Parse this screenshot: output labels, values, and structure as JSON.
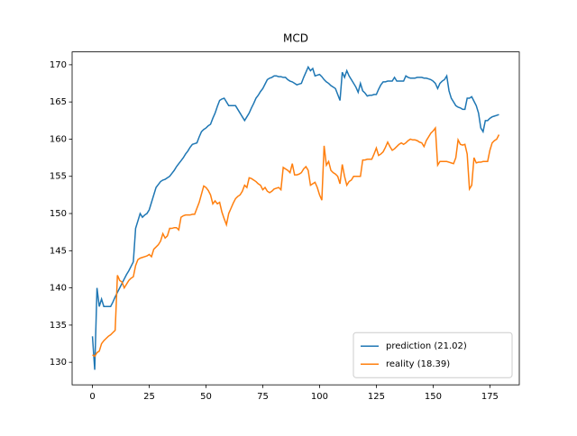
{
  "chart_data": {
    "type": "line",
    "title": "MCD",
    "x": [
      0,
      1,
      2,
      3,
      4,
      5,
      6,
      7,
      8,
      9,
      10,
      11,
      12,
      13,
      14,
      15,
      16,
      17,
      18,
      19,
      20,
      21,
      22,
      23,
      24,
      25,
      26,
      27,
      28,
      29,
      30,
      31,
      32,
      33,
      34,
      35,
      36,
      37,
      38,
      39,
      40,
      41,
      42,
      43,
      44,
      45,
      46,
      47,
      48,
      49,
      50,
      51,
      52,
      53,
      54,
      55,
      56,
      57,
      58,
      59,
      60,
      61,
      62,
      63,
      64,
      65,
      66,
      67,
      68,
      69,
      70,
      71,
      72,
      73,
      74,
      75,
      76,
      77,
      78,
      79,
      80,
      81,
      82,
      83,
      84,
      85,
      86,
      87,
      88,
      89,
      90,
      91,
      92,
      93,
      94,
      95,
      96,
      97,
      98,
      99,
      100,
      101,
      102,
      103,
      104,
      105,
      106,
      107,
      108,
      109,
      110,
      111,
      112,
      113,
      114,
      115,
      116,
      117,
      118,
      119,
      120,
      121,
      122,
      123,
      124,
      125,
      126,
      127,
      128,
      129,
      130,
      131,
      132,
      133,
      134,
      135,
      136,
      137,
      138,
      139,
      140,
      141,
      142,
      143,
      144,
      145,
      146,
      147,
      148,
      149,
      150,
      151,
      152,
      153,
      154,
      155,
      156,
      157,
      158,
      159,
      160,
      161,
      162,
      163,
      164,
      165,
      166,
      167,
      168,
      169,
      170,
      171,
      172,
      173,
      174,
      175,
      176,
      177,
      178,
      179
    ],
    "series": [
      {
        "name": "prediction (21.02)",
        "color": "#1f77b4",
        "values": [
          133.5,
          129,
          140,
          137.5,
          138.5,
          137.5,
          137.5,
          137.5,
          137.5,
          138.1,
          138.8,
          139.4,
          140,
          140.6,
          141.2,
          141.8,
          142.3,
          142.9,
          143.5,
          148,
          149,
          150,
          149.5,
          149.8,
          150,
          150.5,
          151.5,
          152.5,
          153.5,
          153.9,
          154.3,
          154.5,
          154.6,
          154.8,
          155,
          155.4,
          155.8,
          156.3,
          156.7,
          157.1,
          157.5,
          158,
          158.4,
          158.9,
          159.3,
          159.4,
          159.5,
          160.3,
          161,
          161.3,
          161.5,
          161.8,
          162,
          162.8,
          163.5,
          164.4,
          165.2,
          165.4,
          165.5,
          165,
          164.5,
          164.5,
          164.5,
          164.5,
          164,
          163.5,
          163,
          162.5,
          163,
          163.5,
          164.2,
          164.8,
          165.5,
          165.9,
          166.4,
          166.8,
          167.4,
          168,
          168.2,
          168.3,
          168.5,
          168.5,
          168.4,
          168.4,
          168.3,
          168.3,
          168,
          167.8,
          167.7,
          167.5,
          167.3,
          167.4,
          167.5,
          168.3,
          169,
          169.7,
          169.2,
          169.5,
          168.5,
          168.6,
          168.7,
          168.4,
          168,
          167.7,
          167.5,
          167.2,
          167,
          166.8,
          166,
          165.2,
          169,
          168.3,
          169.2,
          168.5,
          168,
          167.5,
          167,
          166.3,
          167.5,
          166.5,
          166.2,
          165.8,
          165.9,
          165.9,
          166,
          166,
          166.7,
          167.3,
          167.7,
          167.7,
          167.8,
          167.8,
          167.8,
          168.3,
          167.8,
          167.8,
          167.8,
          167.8,
          168.5,
          168.3,
          168.2,
          168.2,
          168.2,
          168.3,
          168.3,
          168.3,
          168.2,
          168.2,
          168.1,
          168,
          167.8,
          167.5,
          166.8,
          167.5,
          167.8,
          168,
          168.5,
          166.5,
          165.5,
          165,
          164.5,
          164.3,
          164.2,
          164,
          164,
          165.5,
          165.5,
          165.7,
          165.1,
          164.5,
          163.5,
          161.5,
          161,
          162.5,
          162.5,
          162.8,
          163,
          163.1,
          163.2,
          163.3
        ]
      },
      {
        "name": "reality (18.39)",
        "color": "#ff7f0e",
        "values": [
          131,
          130.8,
          131.3,
          131.5,
          132.5,
          132.9,
          133.2,
          133.5,
          133.7,
          134,
          134.3,
          141.7,
          141,
          140.8,
          140,
          140.5,
          141,
          141.3,
          141.5,
          143,
          143.8,
          144,
          144.1,
          144.2,
          144.3,
          144.5,
          144.2,
          145.2,
          145.5,
          145.8,
          146.3,
          147.3,
          146.7,
          147,
          148,
          148,
          148.1,
          148.1,
          147.8,
          149.5,
          149.7,
          149.8,
          149.8,
          149.8,
          149.9,
          149.9,
          150.7,
          151.5,
          152.6,
          153.7,
          153.5,
          153.1,
          152.5,
          151.3,
          151.7,
          151.3,
          151.5,
          150.2,
          149.3,
          148.5,
          150,
          150.7,
          151.4,
          152,
          152.3,
          152.5,
          153,
          153.8,
          153.5,
          154.8,
          154.7,
          154.5,
          154.3,
          154,
          153.8,
          153.2,
          153.5,
          153,
          152.8,
          153,
          153.3,
          153.4,
          153.5,
          153.2,
          156.2,
          156,
          155.8,
          155.5,
          156.7,
          155.2,
          155.2,
          155.3,
          155.5,
          156,
          156.3,
          155.8,
          153.8,
          154,
          154.2,
          153.5,
          152.5,
          151.8,
          159.1,
          156.5,
          157,
          155.8,
          155.5,
          155.3,
          155,
          154,
          156.6,
          155,
          153.8,
          154.3,
          154.5,
          155,
          155,
          155,
          155,
          157.2,
          157.2,
          157.3,
          157.3,
          157.3,
          158,
          158.8,
          157.8,
          158,
          158.3,
          158.9,
          159.6,
          159,
          158.5,
          158.7,
          159,
          159.3,
          159.5,
          159.3,
          159.5,
          159.8,
          160,
          159.9,
          159.9,
          159.8,
          159.6,
          159.5,
          159,
          159.8,
          160.3,
          160.8,
          161.1,
          161.5,
          156.5,
          157,
          157,
          157,
          157,
          156.9,
          156.8,
          156.7,
          157.5,
          159.9,
          159.3,
          159.2,
          159.3,
          158,
          153.3,
          153.8,
          157.5,
          156.8,
          156.9,
          156.9,
          157,
          157,
          157,
          158.5,
          159.5,
          159.8,
          160,
          160.6
        ]
      }
    ],
    "xlim": [
      -8.95,
      187.95
    ],
    "ylim": [
      126.97,
      171.73
    ],
    "xticks": [
      0,
      25,
      50,
      75,
      100,
      125,
      150,
      175
    ],
    "yticks": [
      130,
      135,
      140,
      145,
      150,
      155,
      160,
      165,
      170
    ],
    "legend": "lower right"
  }
}
